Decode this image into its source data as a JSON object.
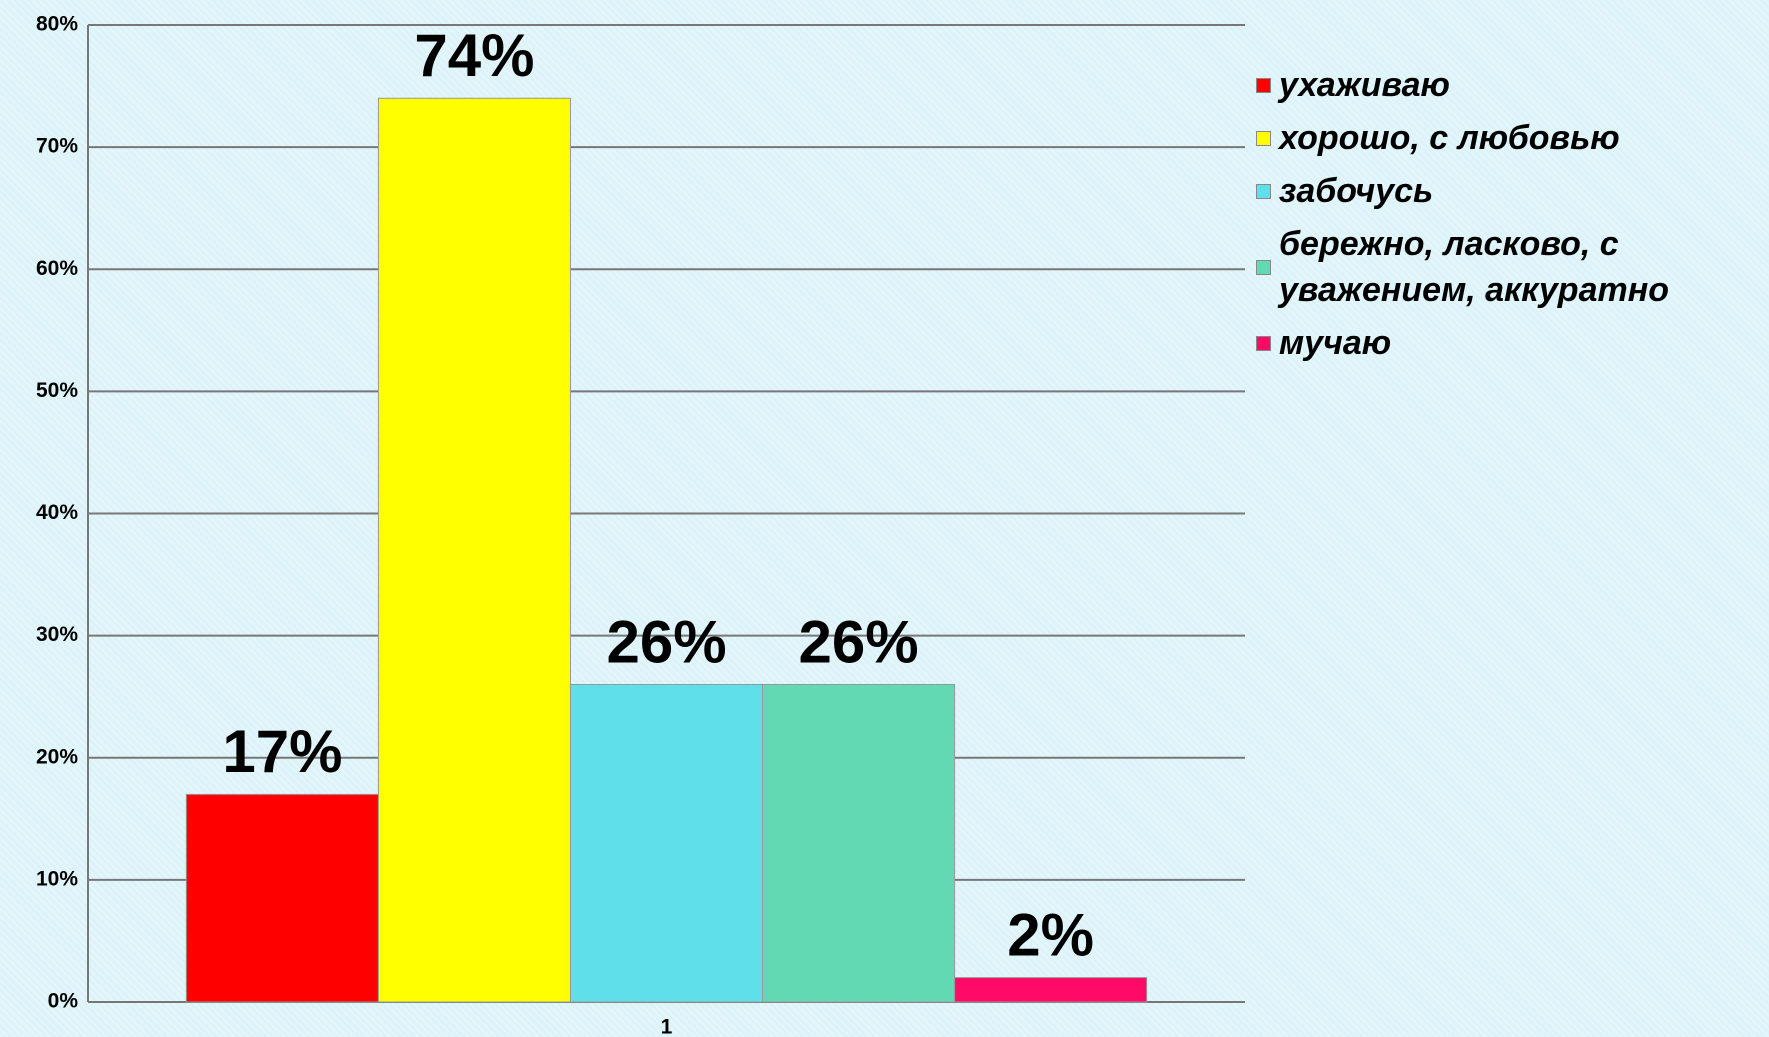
{
  "chart_data": {
    "type": "bar",
    "categories": [
      "1"
    ],
    "series": [
      {
        "name": "ухаживаю",
        "color": "#ff0000",
        "values": [
          17
        ],
        "value_labels": [
          "17%"
        ]
      },
      {
        "name": "хорошо, с любовью",
        "color": "#ffff00",
        "values": [
          74
        ],
        "value_labels": [
          "74%"
        ]
      },
      {
        "name": "забочусь",
        "color": "#5fdfea",
        "values": [
          26
        ],
        "value_labels": [
          "26%"
        ]
      },
      {
        "name": "бережно, ласково, с уважением, аккуратно",
        "color": "#62d9b2",
        "values": [
          26
        ],
        "value_labels": [
          "26%"
        ]
      },
      {
        "name": "мучаю",
        "color": "#ff0a66",
        "values": [
          2
        ],
        "value_labels": [
          "2%"
        ]
      }
    ],
    "ylim": [
      0,
      80
    ],
    "yticks": [
      {
        "value": 0,
        "label": "0%"
      },
      {
        "value": 10,
        "label": "10%"
      },
      {
        "value": 20,
        "label": "20%"
      },
      {
        "value": 30,
        "label": "30%"
      },
      {
        "value": 40,
        "label": "40%"
      },
      {
        "value": 50,
        "label": "50%"
      },
      {
        "value": 60,
        "label": "60%"
      },
      {
        "value": 70,
        "label": "70%"
      },
      {
        "value": 80,
        "label": "80%"
      }
    ],
    "grid": true,
    "legend": "right"
  }
}
